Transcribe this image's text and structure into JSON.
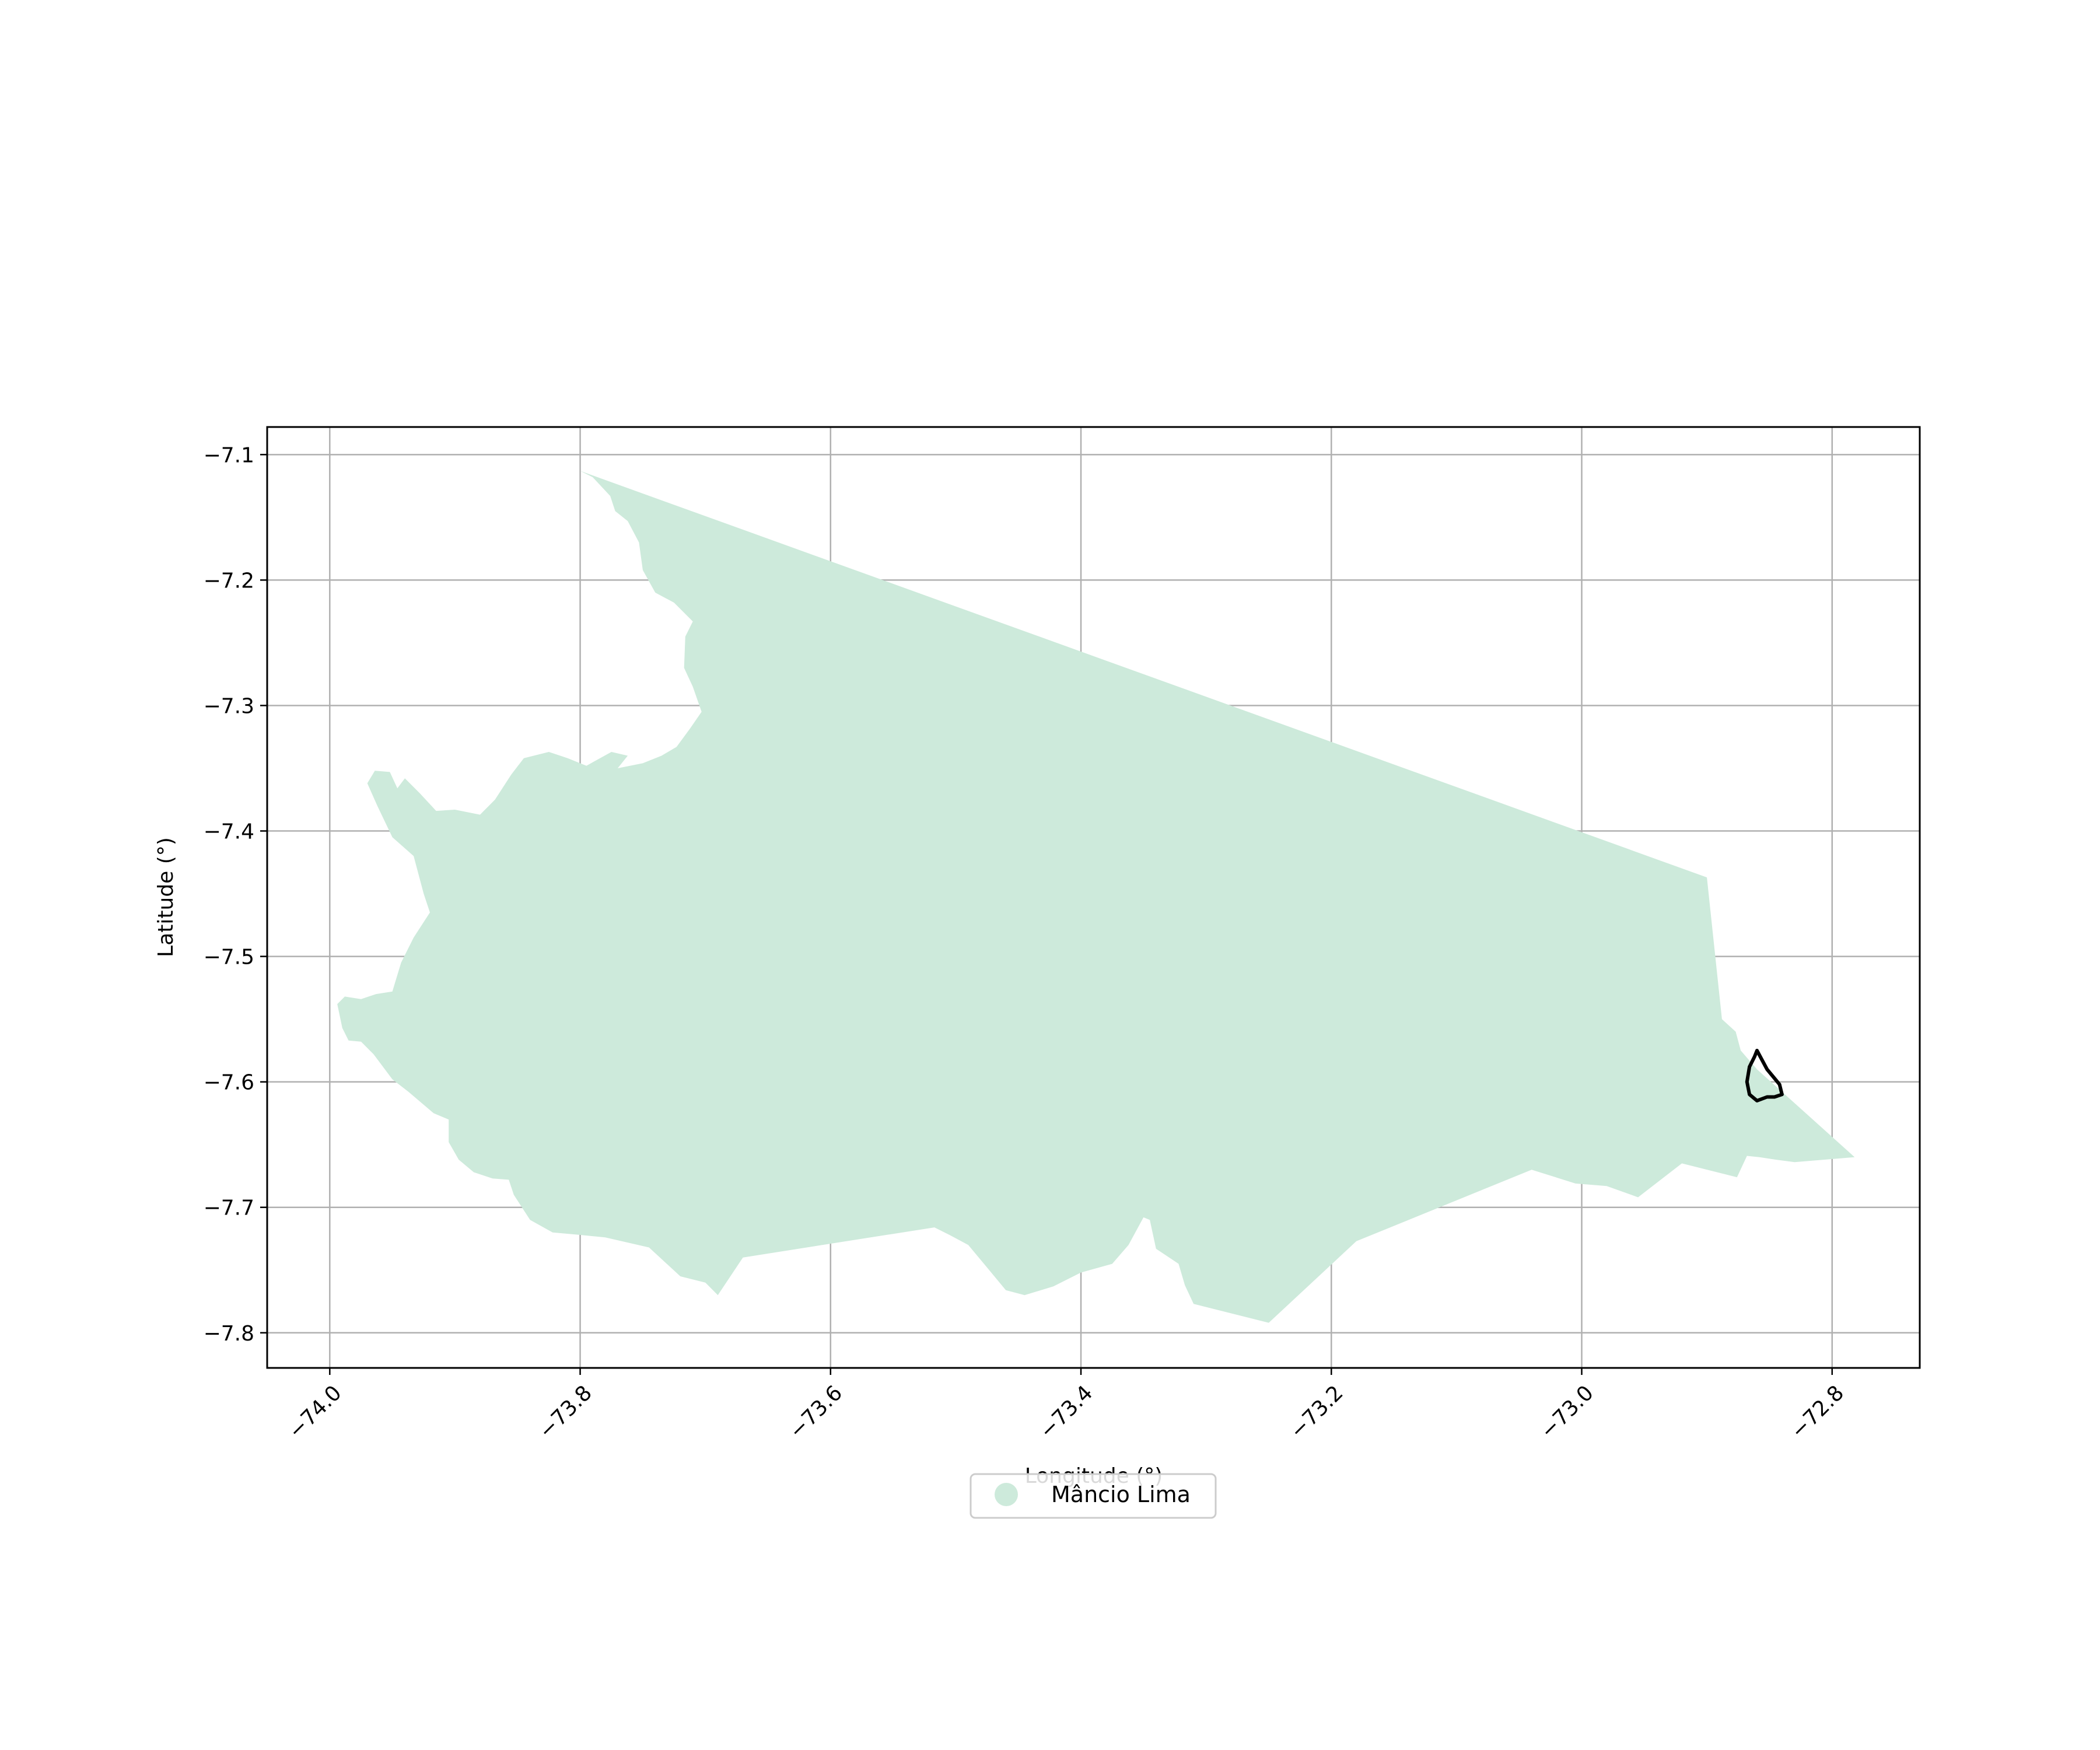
{
  "chart_data": {
    "type": "map",
    "xlabel": "Longitude (°)",
    "ylabel": "Latitude (°)",
    "xlim": [
      -74.05,
      -72.73
    ],
    "ylim": [
      -7.828,
      -7.078
    ],
    "x_ticks": [
      -74.0,
      -73.8,
      -73.6,
      -73.4,
      -73.2,
      -73.0,
      -72.8
    ],
    "x_tick_labels": [
      "−74.0",
      "−73.8",
      "−73.6",
      "−73.4",
      "−73.2",
      "−73.0",
      "−72.8"
    ],
    "y_ticks": [
      -7.1,
      -7.2,
      -7.3,
      -7.4,
      -7.5,
      -7.6,
      -7.7,
      -7.8
    ],
    "y_tick_labels": [
      "−7.1",
      "−7.2",
      "−7.3",
      "−7.4",
      "−7.5",
      "−7.6",
      "−7.7",
      "−7.8"
    ],
    "grid": true,
    "legend": {
      "position": "lower-center",
      "entries": [
        {
          "label": "Mâncio Lima",
          "color": "#cdeadb"
        }
      ]
    },
    "series": [
      {
        "name": "Mâncio Lima",
        "kind": "filled-region",
        "color": "#cdeadb",
        "polygon": [
          [
            -73.8,
            -7.113
          ],
          [
            -72.9,
            -7.437
          ],
          [
            -72.888,
            -7.55
          ],
          [
            -72.877,
            -7.56
          ],
          [
            -72.873,
            -7.575
          ],
          [
            -72.86,
            -7.59
          ],
          [
            -72.782,
            -7.66
          ],
          [
            -72.83,
            -7.664
          ],
          [
            -72.845,
            -7.662
          ],
          [
            -72.858,
            -7.66
          ],
          [
            -72.868,
            -7.659
          ],
          [
            -72.876,
            -7.676
          ],
          [
            -72.92,
            -7.665
          ],
          [
            -72.955,
            -7.692
          ],
          [
            -72.98,
            -7.683
          ],
          [
            -73.005,
            -7.681
          ],
          [
            -73.04,
            -7.67
          ],
          [
            -73.18,
            -7.727
          ],
          [
            -73.25,
            -7.792
          ],
          [
            -73.31,
            -7.777
          ],
          [
            -73.317,
            -7.762
          ],
          [
            -73.322,
            -7.745
          ],
          [
            -73.34,
            -7.733
          ],
          [
            -73.345,
            -7.71
          ],
          [
            -73.35,
            -7.708
          ],
          [
            -73.362,
            -7.73
          ],
          [
            -73.375,
            -7.745
          ],
          [
            -73.4,
            -7.752
          ],
          [
            -73.422,
            -7.763
          ],
          [
            -73.445,
            -7.77
          ],
          [
            -73.46,
            -7.766
          ],
          [
            -73.475,
            -7.748
          ],
          [
            -73.49,
            -7.73
          ],
          [
            -73.505,
            -7.722
          ],
          [
            -73.517,
            -7.716
          ],
          [
            -73.67,
            -7.74
          ],
          [
            -73.69,
            -7.77
          ],
          [
            -73.7,
            -7.76
          ],
          [
            -73.72,
            -7.755
          ],
          [
            -73.745,
            -7.732
          ],
          [
            -73.78,
            -7.724
          ],
          [
            -73.8,
            -7.722
          ],
          [
            -73.822,
            -7.72
          ],
          [
            -73.84,
            -7.71
          ],
          [
            -73.853,
            -7.69
          ],
          [
            -73.857,
            -7.678
          ],
          [
            -73.87,
            -7.677
          ],
          [
            -73.885,
            -7.672
          ],
          [
            -73.897,
            -7.662
          ],
          [
            -73.905,
            -7.648
          ],
          [
            -73.905,
            -7.63
          ],
          [
            -73.917,
            -7.625
          ],
          [
            -73.937,
            -7.608
          ],
          [
            -73.95,
            -7.598
          ],
          [
            -73.965,
            -7.578
          ],
          [
            -73.975,
            -7.568
          ],
          [
            -73.985,
            -7.567
          ],
          [
            -73.99,
            -7.557
          ],
          [
            -73.994,
            -7.538
          ],
          [
            -73.988,
            -7.532
          ],
          [
            -73.975,
            -7.534
          ],
          [
            -73.963,
            -7.53
          ],
          [
            -73.95,
            -7.528
          ],
          [
            -73.943,
            -7.505
          ],
          [
            -73.933,
            -7.485
          ],
          [
            -73.92,
            -7.465
          ],
          [
            -73.925,
            -7.45
          ],
          [
            -73.933,
            -7.42
          ],
          [
            -73.95,
            -7.405
          ],
          [
            -73.962,
            -7.38
          ],
          [
            -73.97,
            -7.362
          ],
          [
            -73.964,
            -7.352
          ],
          [
            -73.952,
            -7.353
          ],
          [
            -73.946,
            -7.366
          ],
          [
            -73.94,
            -7.358
          ],
          [
            -73.928,
            -7.37
          ],
          [
            -73.915,
            -7.384
          ],
          [
            -73.9,
            -7.383
          ],
          [
            -73.88,
            -7.387
          ],
          [
            -73.868,
            -7.375
          ],
          [
            -73.855,
            -7.355
          ],
          [
            -73.845,
            -7.342
          ],
          [
            -73.825,
            -7.337
          ],
          [
            -73.81,
            -7.342
          ],
          [
            -73.795,
            -7.348
          ],
          [
            -73.775,
            -7.337
          ],
          [
            -73.762,
            -7.34
          ],
          [
            -73.77,
            -7.35
          ],
          [
            -73.75,
            -7.346
          ],
          [
            -73.735,
            -7.34
          ],
          [
            -73.723,
            -7.333
          ],
          [
            -73.712,
            -7.318
          ],
          [
            -73.703,
            -7.305
          ],
          [
            -73.71,
            -7.285
          ],
          [
            -73.717,
            -7.27
          ],
          [
            -73.716,
            -7.245
          ],
          [
            -73.71,
            -7.233
          ],
          [
            -73.725,
            -7.218
          ],
          [
            -73.74,
            -7.21
          ],
          [
            -73.75,
            -7.192
          ],
          [
            -73.753,
            -7.17
          ],
          [
            -73.762,
            -7.153
          ],
          [
            -73.772,
            -7.145
          ],
          [
            -73.776,
            -7.133
          ],
          [
            -73.79,
            -7.118
          ]
        ]
      },
      {
        "name": "",
        "kind": "outline",
        "color": "#000000",
        "polygon": [
          [
            -72.86,
            -7.575
          ],
          [
            -72.852,
            -7.59
          ],
          [
            -72.842,
            -7.602
          ],
          [
            -72.84,
            -7.61
          ],
          [
            -72.846,
            -7.612
          ],
          [
            -72.852,
            -7.612
          ],
          [
            -72.86,
            -7.615
          ],
          [
            -72.866,
            -7.61
          ],
          [
            -72.868,
            -7.6
          ],
          [
            -72.866,
            -7.588
          ],
          [
            -72.862,
            -7.58
          ]
        ]
      }
    ]
  }
}
